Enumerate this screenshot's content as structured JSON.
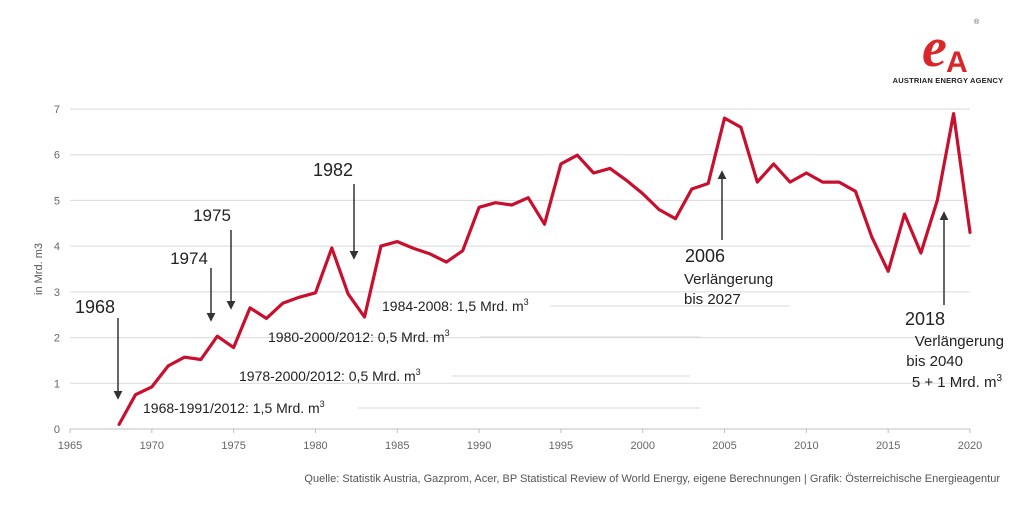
{
  "brand": {
    "logo_letters": "eA",
    "name": "AUSTRIAN ENERGY AGENCY",
    "color": "#d9262b"
  },
  "source_note": "Quelle: Statistik Austria, Gazprom, Acer, BP Statistical Review of World Energy, eigene Berechnungen | Grafik: Österreichische Energieagentur",
  "chart_data": {
    "type": "line",
    "title": "",
    "xlabel": "",
    "ylabel": "in Mrd. m3",
    "xlim": [
      1965,
      2020
    ],
    "ylim": [
      0,
      7
    ],
    "xticks": [
      1965,
      1970,
      1975,
      1980,
      1985,
      1990,
      1995,
      2000,
      2005,
      2010,
      2015,
      2020
    ],
    "yticks": [
      0,
      1,
      2,
      3,
      4,
      5,
      6,
      7
    ],
    "grid": "horizontal",
    "line_color": "#c8102e",
    "series": [
      {
        "x": [
          1968,
          1969,
          1970,
          1971,
          1972,
          1973,
          1974,
          1975,
          1976,
          1977,
          1978,
          1979,
          1980,
          1981,
          1982,
          1983,
          1984,
          1985,
          1986,
          1987,
          1988,
          1989,
          1990,
          1991,
          1992,
          1993,
          1994,
          1995,
          1996,
          1997,
          1998,
          1999,
          2000,
          2001,
          2002,
          2003,
          2004,
          2005,
          2006,
          2007,
          2008,
          2009,
          2010,
          2011,
          2012,
          2013,
          2014,
          2015,
          2016,
          2017,
          2018,
          2019,
          2020
        ],
        "y": [
          0.1,
          0.75,
          0.92,
          1.38,
          1.57,
          1.52,
          2.03,
          1.78,
          2.65,
          2.42,
          2.75,
          2.88,
          2.98,
          3.96,
          2.95,
          2.45,
          4.0,
          4.1,
          3.95,
          3.83,
          3.65,
          3.9,
          4.85,
          4.95,
          4.9,
          5.06,
          4.48,
          5.8,
          5.99,
          5.6,
          5.7,
          5.44,
          5.15,
          4.8,
          4.6,
          5.25,
          5.37,
          6.8,
          6.6,
          5.4,
          5.8,
          5.4,
          5.6,
          5.4,
          5.4,
          5.2,
          4.2,
          3.45,
          4.7,
          3.85,
          5.0,
          6.9,
          4.3
        ]
      }
    ],
    "arrow_annotations": [
      {
        "label": "1968",
        "year": 1968
      },
      {
        "label": "1974",
        "year": 1974
      },
      {
        "label": "1975",
        "year": 1975
      },
      {
        "label": "1982",
        "year": 1982
      },
      {
        "label": "2006",
        "year": 2005
      },
      {
        "label": "2018",
        "year": 2018
      }
    ],
    "contract_lines": [
      {
        "text": "1984-2008: 1,5 Mrd. m",
        "sup": "3"
      },
      {
        "text": "1980-2000/2012: 0,5 Mrd. m",
        "sup": "3"
      },
      {
        "text": "1978-2000/2012: 0,5 Mrd. m",
        "sup": "3"
      },
      {
        "text": "1968-1991/2012: 1,5 Mrd. m",
        "sup": "3"
      }
    ],
    "notes": {
      "n2006_line1": "Verlängerung",
      "n2006_line2": "bis 2027",
      "n2018_line1": "Verlängerung",
      "n2018_line2": "bis 2040",
      "n2018_line3": "5 + 1 Mrd. m",
      "n2018_sup": "3"
    }
  }
}
